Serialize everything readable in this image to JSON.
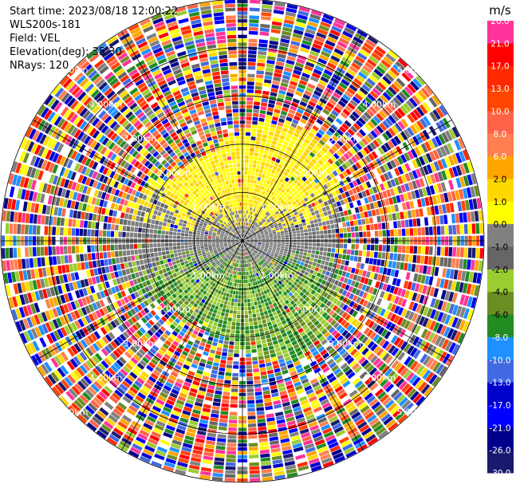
{
  "header": {
    "start_time": "Start time: 2023/08/18 12:00:22",
    "station": "WLS200s-181",
    "field": "Field: VEL",
    "elevation": "Elevation(deg): 35.30",
    "nrays": "NRays: 120"
  },
  "chart_data": {
    "type": "ppi",
    "field": "VEL",
    "unit": "m/s",
    "n_rays": 120,
    "elevation_deg": 35.3,
    "max_range_km": 5.0,
    "range_rings_km": [
      1.0,
      2.0,
      3.0,
      4.0,
      5.0
    ],
    "ring_labels": [
      "1.00km",
      "2.00km",
      "3.00km",
      "4.00km",
      "5.00km"
    ],
    "colorbar": {
      "title": "m/s",
      "ticks": [
        "26.0",
        "21.0",
        "17.0",
        "13.0",
        "10.0",
        "8.0",
        "6.0",
        "2.0",
        "1.0",
        "0.0",
        "-1.0",
        "-2.0",
        "-4.0",
        "-6.0",
        "-8.0",
        "-10.0",
        "-13.0",
        "-17.0",
        "-21.0",
        "-26.0",
        "-30.0"
      ],
      "colors": [
        "#ff3399",
        "#ff0000",
        "#ff2a00",
        "#ff4500",
        "#ff6347",
        "#ff7f50",
        "#ffa500",
        "#ffd700",
        "#ffff00",
        "#808080",
        "#666666",
        "#9acd32",
        "#6b8e23",
        "#228b22",
        "#1e90ff",
        "#4169e1",
        "#0000cd",
        "#0000ff",
        "#00008b",
        "#191970"
      ]
    },
    "wind_pattern": {
      "near_field": "yellow positive velocities north, green negative velocities south, grey near-zero east-west band",
      "far_field": "noisy mixed velocities beyond ~2.3 km"
    }
  }
}
